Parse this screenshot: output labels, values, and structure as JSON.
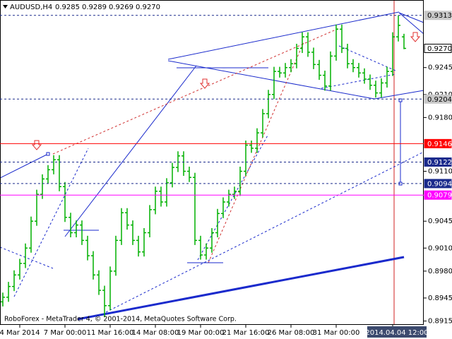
{
  "chart_data": {
    "type": "ohlc",
    "title": "AUDUSD,H4",
    "quote_labels": [
      "0.9285",
      "0.9289",
      "0.9269",
      "0.9270"
    ],
    "watermark": "RoboForex - MetaTrader 4, © 2001-2014, MetaQuotes Software Corp.",
    "color": "#00b000",
    "categories": [
      null,
      null,
      null,
      "4 Mar 2014",
      null,
      null,
      null,
      null,
      null,
      null,
      null,
      "7 Mar 00:00",
      null,
      null,
      null,
      null,
      null,
      null,
      null,
      "11 Mar 16:00",
      null,
      null,
      null,
      null,
      null,
      null,
      null,
      "14 Mar 08:00",
      null,
      null,
      null,
      null,
      null,
      null,
      null,
      "19 Mar 00:00",
      null,
      null,
      null,
      null,
      null,
      null,
      null,
      "21 Mar 16:00",
      null,
      null,
      null,
      null,
      null,
      null,
      null,
      "26 Mar 08:00",
      null,
      null,
      null,
      null,
      null,
      null,
      null,
      "31 Mar 00:00",
      null,
      null,
      null,
      null,
      null,
      null,
      null,
      null,
      null,
      "2014.04.04 12:00",
      null,
      null
    ],
    "open": [
      0.894,
      0.8946,
      0.896,
      0.8975,
      0.899,
      0.901,
      0.9045,
      0.908,
      0.91,
      0.9112,
      0.9125,
      0.909,
      0.905,
      0.903,
      0.904,
      0.902,
      0.9,
      0.8975,
      0.8955,
      0.8935,
      0.898,
      0.902,
      0.9056,
      0.904,
      0.902,
      0.9005,
      0.903,
      0.906,
      0.9084,
      0.907,
      0.9095,
      0.9115,
      0.913,
      0.911,
      0.9102,
      0.902,
      0.9001,
      0.901,
      0.903,
      0.9055,
      0.907,
      0.908,
      0.9084,
      0.911,
      0.9144,
      0.914,
      0.916,
      0.9185,
      0.921,
      0.924,
      0.9238,
      0.9245,
      0.925,
      0.927,
      0.9285,
      0.9265,
      0.9249,
      0.9235,
      0.9221,
      0.926,
      0.9295,
      0.927,
      0.925,
      0.9245,
      0.9238,
      0.923,
      0.9222,
      0.9212,
      0.9225,
      0.924,
      0.9285,
      0.9285
    ],
    "high": [
      0.8952,
      0.8966,
      0.8981,
      0.8996,
      0.9016,
      0.9051,
      0.9086,
      0.9106,
      0.9118,
      0.9131,
      0.9131,
      0.9096,
      0.9056,
      0.9046,
      0.9046,
      0.9026,
      0.9006,
      0.8981,
      0.8961,
      0.8986,
      0.9026,
      0.9062,
      0.9062,
      0.9046,
      0.9026,
      0.9036,
      0.9066,
      0.909,
      0.909,
      0.9101,
      0.9121,
      0.9136,
      0.9136,
      0.9116,
      0.9108,
      0.9026,
      0.9016,
      0.9036,
      0.9061,
      0.9076,
      0.9086,
      0.909,
      0.9116,
      0.915,
      0.915,
      0.9166,
      0.9191,
      0.9216,
      0.9246,
      0.9246,
      0.9251,
      0.9256,
      0.9276,
      0.9291,
      0.9291,
      0.9271,
      0.9255,
      0.9241,
      0.9266,
      0.9301,
      0.9301,
      0.9276,
      0.9256,
      0.9251,
      0.9244,
      0.9236,
      0.9228,
      0.9231,
      0.9246,
      0.9291,
      0.9313,
      0.9289
    ],
    "low": [
      0.8934,
      0.894,
      0.8954,
      0.8969,
      0.8984,
      0.9004,
      0.9039,
      0.9074,
      0.9094,
      0.9106,
      0.9084,
      0.9044,
      0.9024,
      0.9024,
      0.9014,
      0.8994,
      0.8969,
      0.8949,
      0.892,
      0.8929,
      0.8974,
      0.9014,
      0.9034,
      0.9014,
      0.8999,
      0.8999,
      0.9024,
      0.9054,
      0.9064,
      0.9064,
      0.9089,
      0.9109,
      0.9104,
      0.9096,
      0.9014,
      0.8995,
      0.8995,
      0.9004,
      0.9024,
      0.9049,
      0.9064,
      0.9074,
      0.9078,
      0.9104,
      0.9134,
      0.9134,
      0.9154,
      0.9179,
      0.9204,
      0.9232,
      0.9232,
      0.9239,
      0.9244,
      0.9264,
      0.9259,
      0.9243,
      0.9229,
      0.9215,
      0.9215,
      0.9254,
      0.9264,
      0.9244,
      0.9239,
      0.9232,
      0.9224,
      0.9216,
      0.9206,
      0.9206,
      0.9219,
      0.9234,
      0.9279,
      0.9269
    ],
    "close": [
      0.8946,
      0.896,
      0.8975,
      0.899,
      0.901,
      0.9045,
      0.908,
      0.91,
      0.9112,
      0.9125,
      0.909,
      0.905,
      0.903,
      0.904,
      0.902,
      0.9,
      0.8975,
      0.8955,
      0.8935,
      0.898,
      0.902,
      0.9056,
      0.904,
      0.902,
      0.9005,
      0.903,
      0.906,
      0.9084,
      0.907,
      0.9095,
      0.9115,
      0.913,
      0.911,
      0.9102,
      0.902,
      0.9001,
      0.901,
      0.903,
      0.9055,
      0.907,
      0.908,
      0.9084,
      0.911,
      0.9144,
      0.914,
      0.916,
      0.9185,
      0.921,
      0.924,
      0.9238,
      0.9245,
      0.925,
      0.927,
      0.9285,
      0.9265,
      0.9249,
      0.9235,
      0.9221,
      0.926,
      0.9295,
      0.927,
      0.925,
      0.9245,
      0.9238,
      0.923,
      0.9222,
      0.9212,
      0.9225,
      0.924,
      0.9285,
      0.93,
      0.927
    ],
    "ylim": [
      0.891,
      0.9333
    ],
    "yticks": [
      0.9245,
      {
        "value": 0.921,
        "label": "0.9210"
      },
      {
        "value": 0.918,
        "label": "0.9180"
      },
      {
        "value": 0.911,
        "label": "0.9110"
      },
      0.9045,
      {
        "value": 0.901,
        "label": "0.9010"
      },
      {
        "value": 0.898,
        "label": "0.8980"
      },
      0.8945,
      0.8915
    ],
    "levels": [
      {
        "value": 0.9313,
        "line_color": "#1a2a8c",
        "line_style": "dashed",
        "box_color": "#c8c8c8",
        "text_color": "#000000"
      },
      {
        "value": {
          "value": 0.927,
          "label": "0.9270"
        },
        "line_color": "none",
        "line_style": "none",
        "box_color": "#ffffff",
        "text_color": "#000000"
      },
      {
        "value": 0.9204,
        "line_color": "#1a2a8c",
        "line_style": "dashed",
        "box_color": "#c8c8c8",
        "text_color": "#000000"
      },
      {
        "value": 0.9146,
        "line_color": "#ff0000",
        "line_style": "solid",
        "box_color": "#ff0000",
        "text_color": "#ffffff"
      },
      {
        "value": 0.9122,
        "line_color": "#1a2a8c",
        "line_style": "dashed",
        "box_color": "#1a2a8c",
        "text_color": "#ffffff"
      },
      {
        "value": 0.9094,
        "line_color": "#1a2a8c",
        "line_style": "dashed",
        "box_color": "#1a2a8c",
        "text_color": "#ffffff"
      },
      {
        "value": 0.9079,
        "line_color": "#ff00ff",
        "line_style": "solid",
        "box_color": "#ff00ff",
        "text_color": "#ffffff"
      }
    ]
  }
}
